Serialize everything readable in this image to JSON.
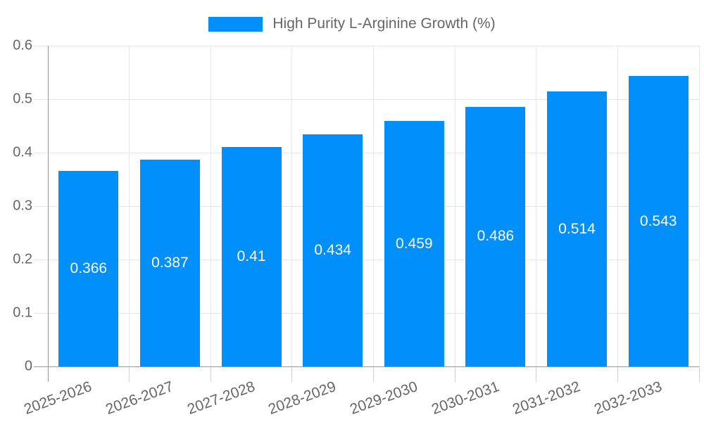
{
  "chart_data": {
    "type": "bar",
    "title": "High Purity L-Arginine Growth (%)",
    "legend_position": "top",
    "categories": [
      "2025-2026",
      "2026-2027",
      "2027-2028",
      "2028-2029",
      "2029-2030",
      "2030-2031",
      "2031-2032",
      "2032-2033"
    ],
    "values": [
      0.366,
      0.387,
      0.41,
      0.434,
      0.459,
      0.486,
      0.514,
      0.543
    ],
    "value_labels": [
      "0.366",
      "0.387",
      "0.41",
      "0.434",
      "0.459",
      "0.486",
      "0.514",
      "0.543"
    ],
    "xlabel": "",
    "ylabel": "",
    "ylim": [
      0,
      0.6
    ],
    "ytick_step": 0.1,
    "ytick_labels": [
      "0",
      "0.1",
      "0.2",
      "0.3",
      "0.4",
      "0.5",
      "0.6"
    ],
    "grid": true,
    "value_label_position": "center",
    "colors": {
      "bar": "#008FFB",
      "axis_line": "#999999",
      "grid_line": "#e7e7e7",
      "tick_line": "#d0d0d0",
      "axis_text": "#666666",
      "legend_text": "#666666",
      "value_text": "#ffffff",
      "background": "#ffffff"
    }
  }
}
